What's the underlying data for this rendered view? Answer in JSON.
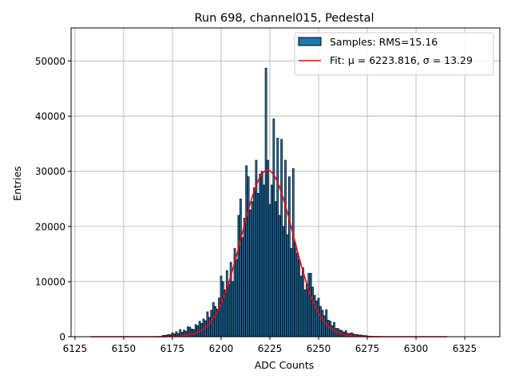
{
  "chart_data": {
    "type": "bar",
    "title": "Run 698, channel015, Pedestal",
    "xlabel": "ADC Counts",
    "ylabel": "Entries",
    "xlim": [
      6123,
      6343
    ],
    "ylim": [
      0,
      56000
    ],
    "xticks": [
      6125,
      6150,
      6175,
      6200,
      6225,
      6250,
      6275,
      6300,
      6325
    ],
    "yticks": [
      0,
      10000,
      20000,
      30000,
      40000,
      50000
    ],
    "grid": true,
    "legend_position": "top-right",
    "colors": {
      "bars": "#1f77b4",
      "bar_edge": "#000000",
      "fit": "#ff0000",
      "grid": "#b0b0b0"
    },
    "legend": {
      "samples_label": "Samples: RMS=15.16",
      "fit_label": "Fit: μ = 6223.816, σ = 13.29"
    },
    "fit": {
      "mu": 6223.816,
      "sigma": 13.29,
      "amplitude": 30200,
      "x_range": [
        6133,
        6316
      ]
    },
    "series": [
      {
        "name": "Samples: RMS=15.16",
        "kind": "histogram",
        "bin_width": 1,
        "x": [
          6170,
          6171,
          6172,
          6173,
          6174,
          6175,
          6176,
          6177,
          6178,
          6179,
          6180,
          6181,
          6182,
          6183,
          6184,
          6185,
          6186,
          6187,
          6188,
          6189,
          6190,
          6191,
          6192,
          6193,
          6194,
          6195,
          6196,
          6197,
          6198,
          6199,
          6200,
          6201,
          6202,
          6203,
          6204,
          6205,
          6206,
          6207,
          6208,
          6209,
          6210,
          6211,
          6212,
          6213,
          6214,
          6215,
          6216,
          6217,
          6218,
          6219,
          6220,
          6221,
          6222,
          6223,
          6224,
          6225,
          6226,
          6227,
          6228,
          6229,
          6230,
          6231,
          6232,
          6233,
          6234,
          6235,
          6236,
          6237,
          6238,
          6239,
          6240,
          6241,
          6242,
          6243,
          6244,
          6245,
          6246,
          6247,
          6248,
          6249,
          6250,
          6251,
          6252,
          6253,
          6254,
          6255,
          6256,
          6257,
          6258,
          6259,
          6260,
          6261,
          6262,
          6263,
          6264,
          6265,
          6266,
          6267,
          6268,
          6269,
          6270,
          6271,
          6272,
          6273,
          6274,
          6275,
          6276,
          6277,
          6278
        ],
        "values": [
          200,
          250,
          300,
          400,
          350,
          700,
          500,
          900,
          600,
          1300,
          800,
          1200,
          1000,
          1800,
          1700,
          1400,
          1300,
          2200,
          2000,
          2800,
          2400,
          3200,
          2900,
          4500,
          3500,
          4800,
          6200,
          5500,
          5000,
          7000,
          11000,
          10000,
          8500,
          12000,
          9500,
          13500,
          10000,
          16000,
          14000,
          22000,
          25000,
          18000,
          21500,
          31000,
          29000,
          23000,
          24500,
          27000,
          32000,
          26000,
          29500,
          30000,
          27500,
          48700,
          32000,
          24000,
          27500,
          39500,
          24500,
          36000,
          22000,
          35800,
          20000,
          32000,
          18500,
          29000,
          16000,
          30500,
          17000,
          15200,
          14000,
          11000,
          12500,
          8500,
          9500,
          11500,
          11500,
          9000,
          7500,
          6500,
          7000,
          5500,
          4800,
          3800,
          4900,
          3000,
          2800,
          2000,
          2600,
          1500,
          1500,
          1200,
          1100,
          800,
          1100,
          600,
          600,
          700,
          500,
          400,
          400,
          300,
          300,
          200,
          200,
          150,
          100,
          100,
          50
        ]
      }
    ]
  }
}
